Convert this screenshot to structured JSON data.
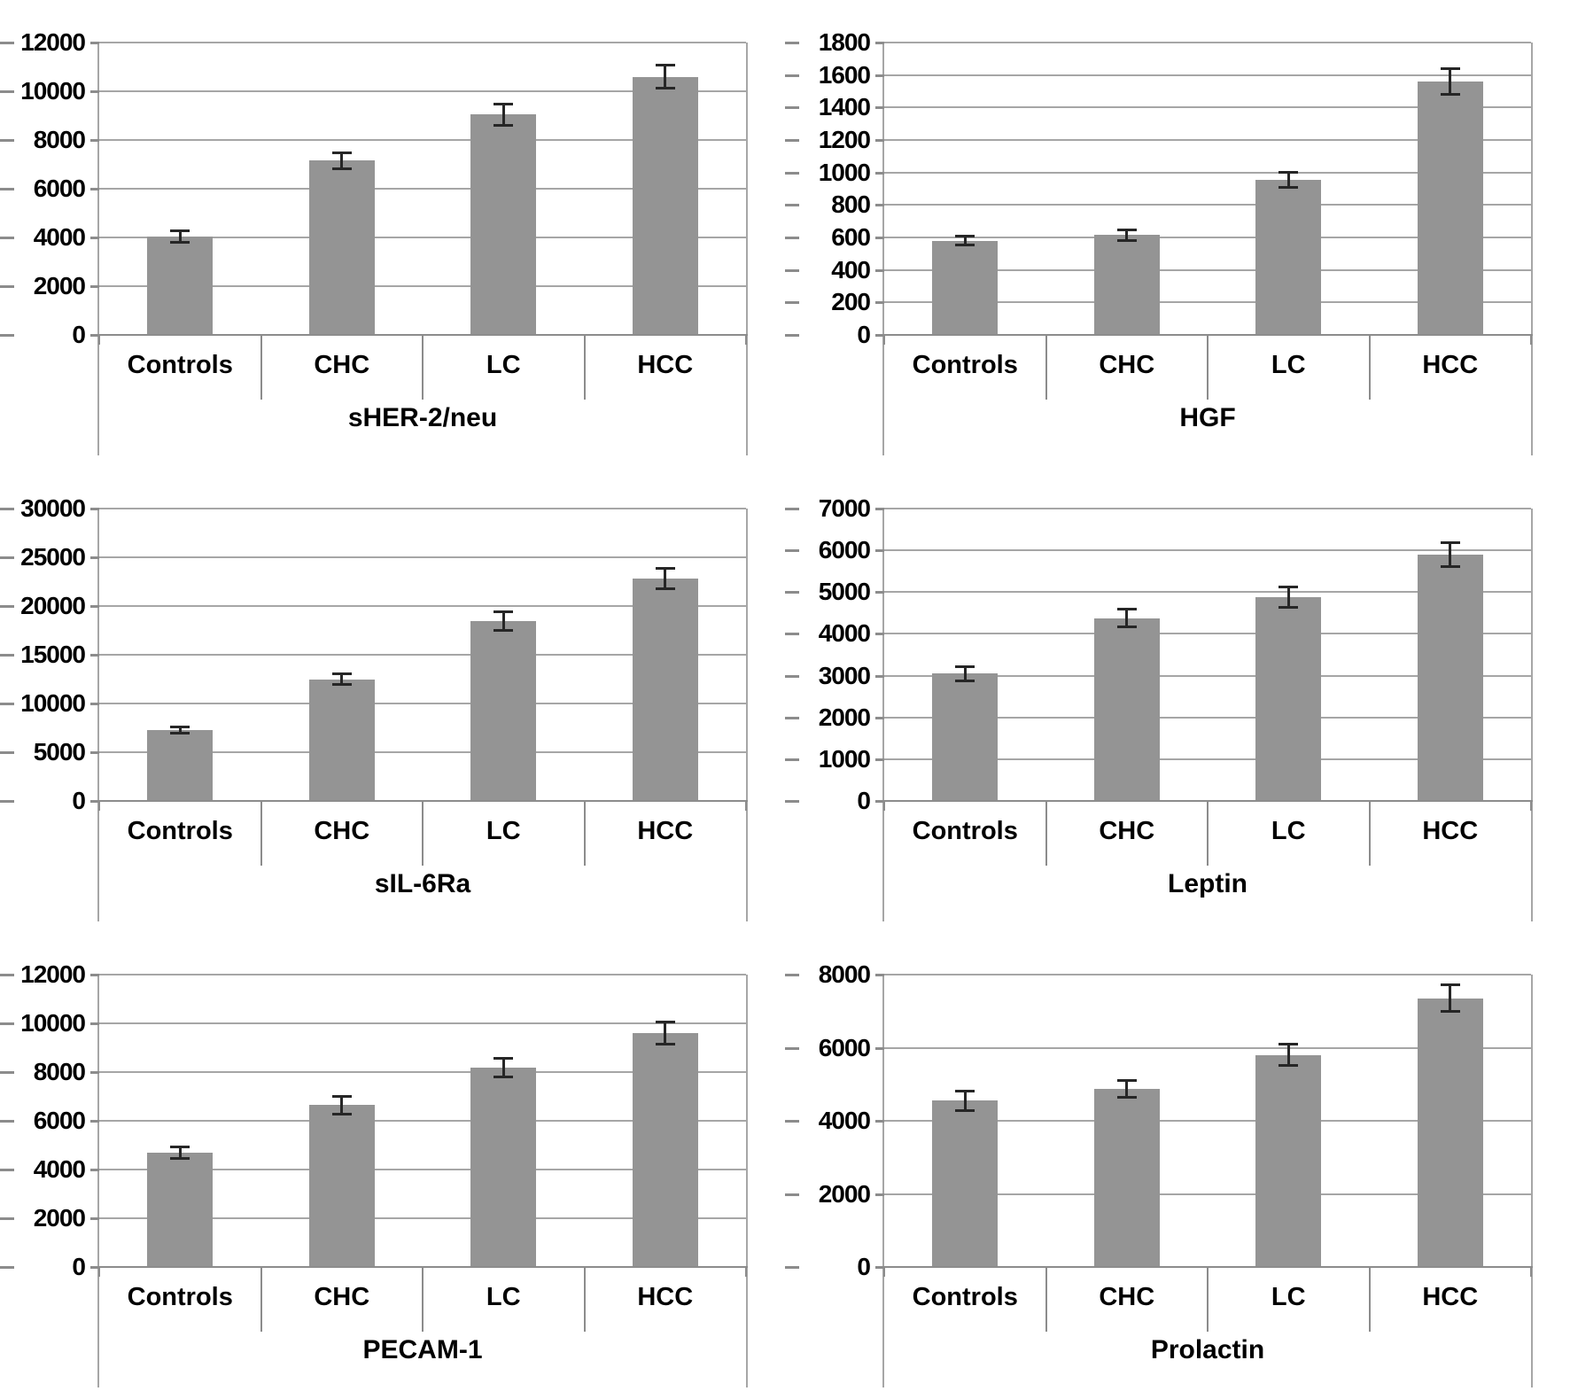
{
  "figure": {
    "background_color": "#ffffff",
    "bar_color": "#949494",
    "gridline_color": "#a6a6a6",
    "axis_color": "#8c8c8c",
    "error_bar_color": "#262626",
    "text_color": "#000000"
  },
  "chart_data": [
    {
      "type": "bar",
      "title": "sHER-2/neu",
      "categories": [
        "Controls",
        "CHC",
        "LC",
        "HCC"
      ],
      "values": [
        4050,
        7150,
        9050,
        10600
      ],
      "errors": [
        250,
        350,
        450,
        500
      ],
      "ylim": [
        0,
        12000
      ],
      "ytick_step": 2000,
      "yticks": [
        0,
        2000,
        4000,
        6000,
        8000,
        10000,
        12000
      ],
      "grid": true,
      "legend": "none",
      "xlabel": "",
      "ylabel": ""
    },
    {
      "type": "bar",
      "title": "HGF",
      "categories": [
        "Controls",
        "CHC",
        "LC",
        "HCC"
      ],
      "values": [
        580,
        615,
        955,
        1560
      ],
      "errors": [
        30,
        35,
        50,
        80
      ],
      "ylim": [
        0,
        1800
      ],
      "ytick_step": 200,
      "yticks": [
        0,
        200,
        400,
        600,
        800,
        1000,
        1200,
        1400,
        1600,
        1800
      ],
      "grid": true,
      "legend": "none",
      "xlabel": "",
      "ylabel": ""
    },
    {
      "type": "bar",
      "title": "sIL-6Ra",
      "categories": [
        "Controls",
        "CHC",
        "LC",
        "HCC"
      ],
      "values": [
        7300,
        12500,
        18500,
        22800
      ],
      "errors": [
        350,
        600,
        1000,
        1100
      ],
      "ylim": [
        0,
        30000
      ],
      "ytick_step": 5000,
      "yticks": [
        0,
        5000,
        10000,
        15000,
        20000,
        25000,
        30000
      ],
      "grid": true,
      "legend": "none",
      "xlabel": "",
      "ylabel": ""
    },
    {
      "type": "bar",
      "title": "Leptin",
      "categories": [
        "Controls",
        "CHC",
        "LC",
        "HCC"
      ],
      "values": [
        3050,
        4380,
        4880,
        5900
      ],
      "errors": [
        180,
        230,
        250,
        300
      ],
      "ylim": [
        0,
        7000
      ],
      "ytick_step": 1000,
      "yticks": [
        0,
        1000,
        2000,
        3000,
        4000,
        5000,
        6000,
        7000
      ],
      "grid": true,
      "legend": "none",
      "xlabel": "",
      "ylabel": ""
    },
    {
      "type": "bar",
      "title": "PECAM-1",
      "categories": [
        "Controls",
        "CHC",
        "LC",
        "HCC"
      ],
      "values": [
        4700,
        6650,
        8200,
        9600
      ],
      "errors": [
        250,
        380,
        400,
        480
      ],
      "ylim": [
        0,
        12000
      ],
      "ytick_step": 2000,
      "yticks": [
        0,
        2000,
        4000,
        6000,
        8000,
        10000,
        12000
      ],
      "grid": true,
      "legend": "none",
      "xlabel": "",
      "ylabel": ""
    },
    {
      "type": "bar",
      "title": "Prolactin",
      "categories": [
        "Controls",
        "CHC",
        "LC",
        "HCC"
      ],
      "values": [
        4550,
        4870,
        5800,
        7350
      ],
      "errors": [
        280,
        250,
        300,
        380
      ],
      "ylim": [
        0,
        8000
      ],
      "ytick_step": 2000,
      "yticks": [
        0,
        2000,
        4000,
        6000,
        8000
      ],
      "grid": true,
      "legend": "none",
      "xlabel": "",
      "ylabel": ""
    }
  ]
}
